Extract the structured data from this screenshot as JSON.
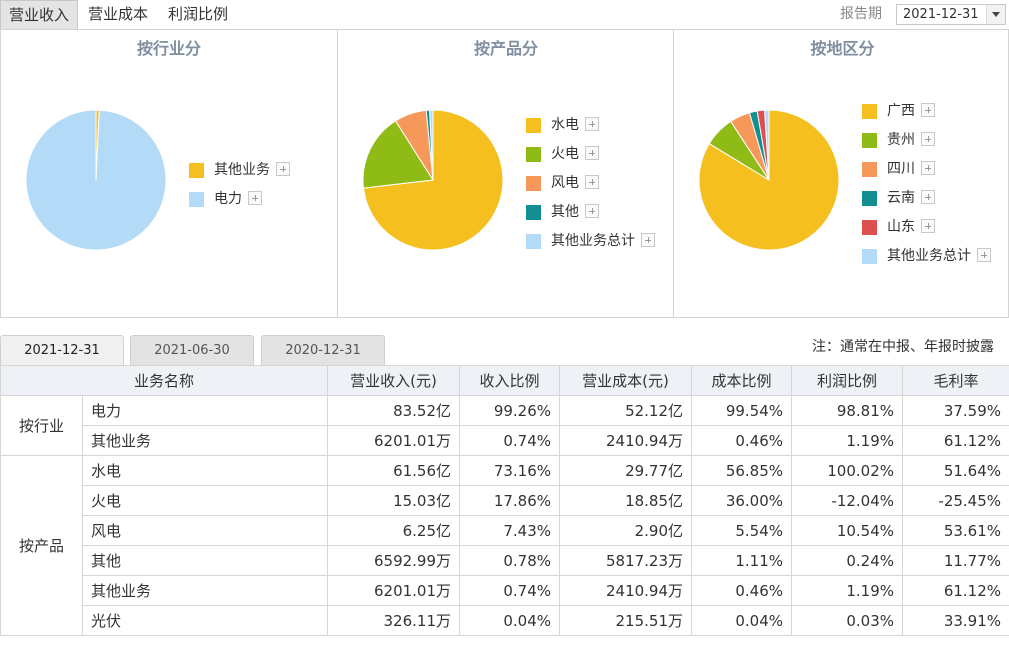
{
  "top_tabs": [
    "营业收入",
    "营业成本",
    "利润比例"
  ],
  "report_period_label": "报告期",
  "report_period_value": "2021-12-31",
  "panels": [
    {
      "title": "按行业分",
      "legend": [
        {
          "label": "其他业务",
          "color": "#f5c01f"
        },
        {
          "label": "电力",
          "color": "#b3daf6"
        }
      ]
    },
    {
      "title": "按产品分",
      "legend": [
        {
          "label": "水电",
          "color": "#f5c01f"
        },
        {
          "label": "火电",
          "color": "#8ebb15"
        },
        {
          "label": "风电",
          "color": "#f6985a"
        },
        {
          "label": "其他",
          "color": "#138f91"
        },
        {
          "label": "其他业务总计",
          "color": "#b3daf6"
        }
      ]
    },
    {
      "title": "按地区分",
      "legend": [
        {
          "label": "广西",
          "color": "#f5c01f"
        },
        {
          "label": "贵州",
          "color": "#8ebb15"
        },
        {
          "label": "四川",
          "color": "#f6985a"
        },
        {
          "label": "云南",
          "color": "#138f91"
        },
        {
          "label": "山东",
          "color": "#dd5050"
        },
        {
          "label": "其他业务总计",
          "color": "#b3daf6"
        }
      ]
    }
  ],
  "chart_data": [
    {
      "type": "pie",
      "title": "按行业分",
      "series": [
        {
          "label": "其他业务",
          "value": 0.74,
          "color": "#f5c01f"
        },
        {
          "label": "电力",
          "value": 99.26,
          "color": "#b3daf6"
        }
      ]
    },
    {
      "type": "pie",
      "title": "按产品分",
      "series": [
        {
          "label": "水电",
          "value": 73.16,
          "color": "#f5c01f"
        },
        {
          "label": "火电",
          "value": 17.86,
          "color": "#8ebb15"
        },
        {
          "label": "风电",
          "value": 7.43,
          "color": "#f6985a"
        },
        {
          "label": "其他",
          "value": 0.78,
          "color": "#138f91"
        },
        {
          "label": "其他业务总计",
          "value": 0.77,
          "color": "#b3daf6"
        }
      ]
    },
    {
      "type": "pie",
      "title": "按地区分",
      "series": [
        {
          "label": "广西",
          "value": 83.7,
          "color": "#f5c01f"
        },
        {
          "label": "贵州",
          "value": 7.1,
          "color": "#8ebb15"
        },
        {
          "label": "四川",
          "value": 4.7,
          "color": "#f6985a"
        },
        {
          "label": "云南",
          "value": 1.8,
          "color": "#138f91"
        },
        {
          "label": "山东",
          "value": 1.7,
          "color": "#dd5050"
        },
        {
          "label": "其他业务总计",
          "value": 1.0,
          "color": "#b3daf6"
        }
      ]
    }
  ],
  "date_tabs": [
    "2021-12-31",
    "2021-06-30",
    "2020-12-31"
  ],
  "note": "注：通常在中报、年报时披露",
  "table": {
    "headers": [
      "业务名称",
      "营业收入(元)",
      "收入比例",
      "营业成本(元)",
      "成本比例",
      "利润比例",
      "毛利率"
    ],
    "groups": [
      {
        "name": "按行业",
        "rows": [
          [
            "电力",
            "83.52亿",
            "99.26%",
            "52.12亿",
            "99.54%",
            "98.81%",
            "37.59%"
          ],
          [
            "其他业务",
            "6201.01万",
            "0.74%",
            "2410.94万",
            "0.46%",
            "1.19%",
            "61.12%"
          ]
        ]
      },
      {
        "name": "按产品",
        "rows": [
          [
            "水电",
            "61.56亿",
            "73.16%",
            "29.77亿",
            "56.85%",
            "100.02%",
            "51.64%"
          ],
          [
            "火电",
            "15.03亿",
            "17.86%",
            "18.85亿",
            "36.00%",
            "-12.04%",
            "-25.45%"
          ],
          [
            "风电",
            "6.25亿",
            "7.43%",
            "2.90亿",
            "5.54%",
            "10.54%",
            "53.61%"
          ],
          [
            "其他",
            "6592.99万",
            "0.78%",
            "5817.23万",
            "1.11%",
            "0.24%",
            "11.77%"
          ],
          [
            "其他业务",
            "6201.01万",
            "0.74%",
            "2410.94万",
            "0.46%",
            "1.19%",
            "61.12%"
          ],
          [
            "光伏",
            "326.11万",
            "0.04%",
            "215.51万",
            "0.04%",
            "0.03%",
            "33.91%"
          ]
        ]
      }
    ]
  }
}
